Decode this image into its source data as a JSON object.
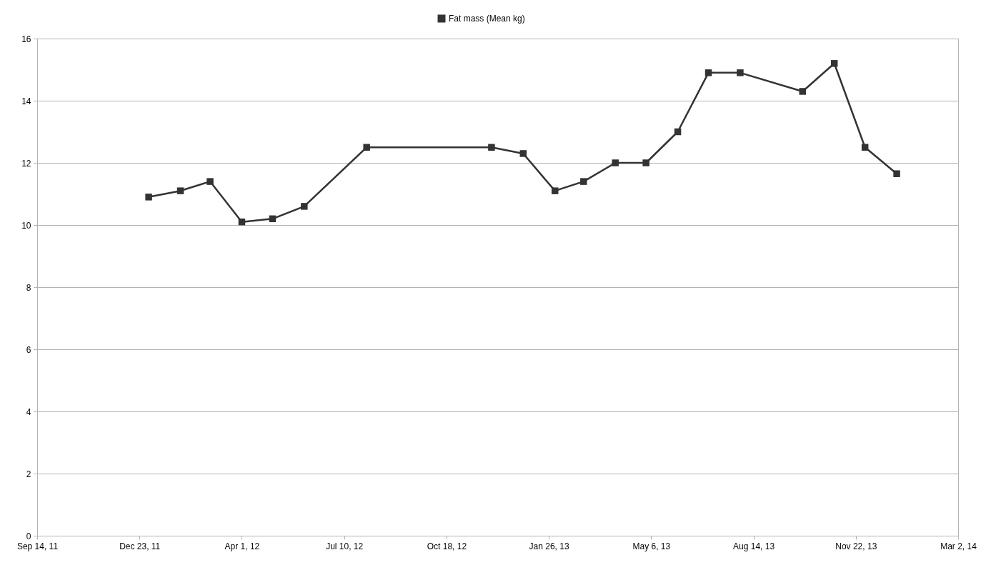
{
  "chart_data": {
    "type": "line",
    "marker": "square",
    "line_style": "solid",
    "grid": "y",
    "legend": "top",
    "x": [
      "2012-01-01",
      "2012-02-01",
      "2012-03-01",
      "2012-04-01",
      "2012-05-01",
      "2012-06-01",
      "2012-08-01",
      "2012-12-01",
      "2013-01-01",
      "2013-02-01",
      "2013-03-01",
      "2013-04-01",
      "2013-05-01",
      "2013-06-01",
      "2013-07-01",
      "2013-08-01",
      "2013-10-01",
      "2013-11-01",
      "2013-12-01",
      "2014-01-01"
    ],
    "series": [
      {
        "name": "Fat mass (Mean kg)",
        "color": "#333333",
        "values": [
          10.9,
          11.1,
          11.4,
          10.1,
          10.2,
          10.6,
          12.5,
          12.5,
          12.3,
          11.1,
          11.4,
          12.0,
          12.0,
          13.0,
          14.9,
          14.9,
          14.3,
          15.2,
          12.5,
          11.65
        ]
      }
    ],
    "xlim": [
      "2011-09-14",
      "2014-03-02"
    ],
    "xticks": [
      {
        "value": "2011-09-14",
        "label": "Sep 14, 11"
      },
      {
        "value": "2011-12-23",
        "label": "Dec 23, 11"
      },
      {
        "value": "2012-04-01",
        "label": "Apr 1, 12"
      },
      {
        "value": "2012-07-10",
        "label": "Jul 10, 12"
      },
      {
        "value": "2012-10-18",
        "label": "Oct 18, 12"
      },
      {
        "value": "2013-01-26",
        "label": "Jan 26, 13"
      },
      {
        "value": "2013-05-06",
        "label": "May 6, 13"
      },
      {
        "value": "2013-08-14",
        "label": "Aug 14, 13"
      },
      {
        "value": "2013-11-22",
        "label": "Nov 22, 13"
      },
      {
        "value": "2014-03-02",
        "label": "Mar 2, 14"
      }
    ],
    "ylim": [
      0,
      16
    ],
    "yticks": [
      0,
      2,
      4,
      6,
      8,
      10,
      12,
      14,
      16
    ]
  }
}
